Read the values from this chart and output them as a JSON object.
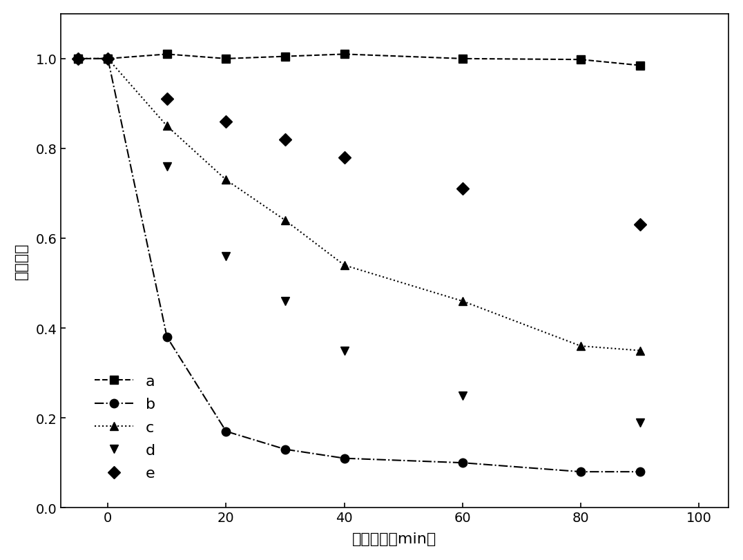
{
  "series": {
    "a": {
      "x": [
        -5,
        0,
        10,
        20,
        30,
        40,
        60,
        80,
        90
      ],
      "y": [
        1.0,
        1.0,
        1.01,
        1.0,
        1.005,
        1.01,
        1.0,
        0.998,
        0.985
      ],
      "marker": "s",
      "linestyle": "--",
      "label": "a",
      "has_line": true
    },
    "b": {
      "x": [
        -5,
        0,
        10,
        20,
        30,
        40,
        60,
        80,
        90
      ],
      "y": [
        1.0,
        1.0,
        0.38,
        0.17,
        0.13,
        0.11,
        0.1,
        0.08,
        0.08
      ],
      "marker": "o",
      "linestyle": "-.",
      "label": "b",
      "has_line": true
    },
    "c": {
      "x": [
        -5,
        0,
        10,
        20,
        30,
        40,
        60,
        80,
        90
      ],
      "y": [
        1.0,
        1.0,
        0.85,
        0.73,
        0.64,
        0.54,
        0.46,
        0.36,
        0.35
      ],
      "marker": "^",
      "linestyle": ":",
      "label": "c",
      "has_line": true
    },
    "d": {
      "x": [
        -5,
        0,
        10,
        20,
        30,
        40,
        60,
        90
      ],
      "y": [
        1.0,
        1.0,
        0.76,
        0.56,
        0.46,
        0.35,
        0.25,
        0.19
      ],
      "marker": "v",
      "linestyle": "none",
      "label": "d",
      "has_line": false
    },
    "e": {
      "x": [
        -5,
        0,
        10,
        20,
        30,
        40,
        60,
        90
      ],
      "y": [
        1.0,
        1.0,
        0.91,
        0.86,
        0.82,
        0.78,
        0.71,
        0.63
      ],
      "marker": "D",
      "linestyle": "none",
      "label": "e",
      "has_line": false
    }
  },
  "xlabel": "光照时间（min）",
  "ylabel": "相对浓度",
  "xlim": [
    -8,
    105
  ],
  "ylim": [
    0.0,
    1.1
  ],
  "xticks": [
    0,
    20,
    40,
    60,
    80,
    100
  ],
  "yticks": [
    0.0,
    0.2,
    0.4,
    0.6,
    0.8,
    1.0
  ],
  "color": "black",
  "markersize": 9,
  "linewidth": 1.5
}
